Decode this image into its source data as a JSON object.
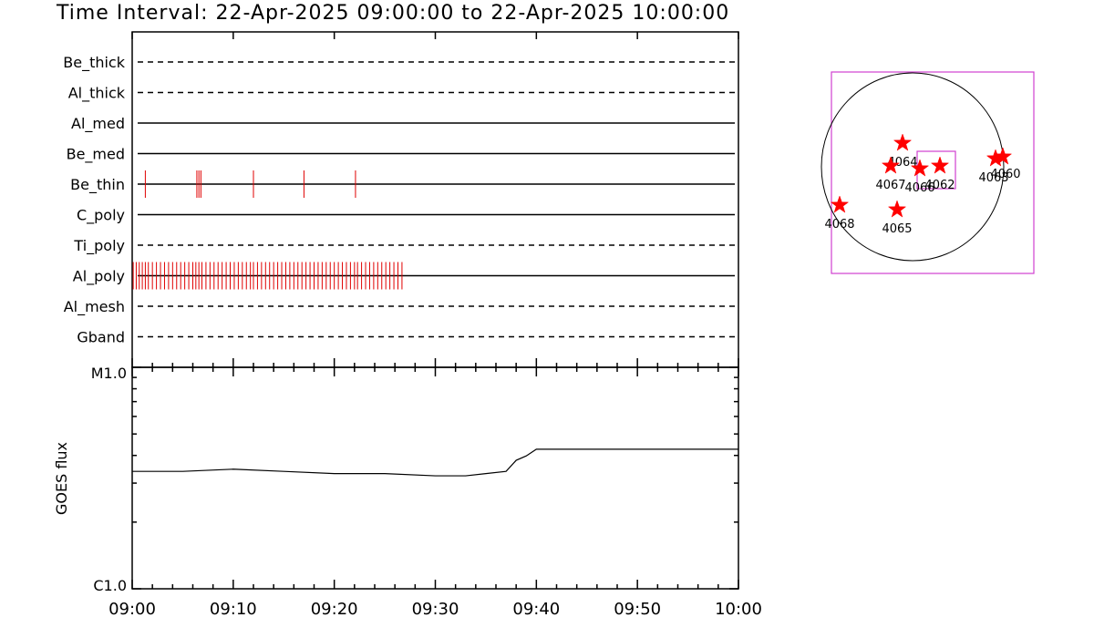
{
  "title": "Time Interval: 22-Apr-2025 09:00:00 to 22-Apr-2025 10:00:00",
  "colors": {
    "event": "#e00000",
    "box": "#d040d0",
    "star": "#ff0000",
    "axis": "#000000"
  },
  "chart_data": [
    {
      "type": "timeline",
      "name": "filter-events",
      "xrange_minutes": [
        0,
        60
      ],
      "channels": [
        {
          "label": "Be_thick",
          "line": "dashed",
          "events": []
        },
        {
          "label": "Al_thick",
          "line": "dashed",
          "events": []
        },
        {
          "label": "Al_med",
          "line": "solid",
          "events": []
        },
        {
          "label": "Be_med",
          "line": "solid",
          "events": []
        },
        {
          "label": "Be_thin",
          "line": "solid",
          "events": [
            1.3,
            6.4,
            6.6,
            6.8,
            12.0,
            17.0,
            22.1
          ]
        },
        {
          "label": "C_poly",
          "line": "solid",
          "events": []
        },
        {
          "label": "Ti_poly",
          "line": "dashed",
          "events": []
        },
        {
          "label": "Al_poly",
          "line": "solid",
          "events": [
            0.1,
            0.4,
            0.7,
            1.0,
            1.3,
            1.6,
            2.0,
            2.4,
            2.8,
            3.2,
            3.6,
            4.0,
            4.4,
            4.8,
            5.2,
            5.6,
            6.0,
            6.3,
            6.6,
            6.9,
            7.3,
            7.7,
            8.1,
            8.5,
            8.9,
            9.3,
            9.7,
            10.1,
            10.5,
            10.9,
            11.3,
            11.7,
            12.0,
            12.4,
            12.8,
            13.2,
            13.6,
            14.0,
            14.4,
            14.8,
            15.2,
            15.6,
            16.0,
            16.4,
            16.8,
            17.2,
            17.6,
            18.0,
            18.4,
            18.8,
            19.2,
            19.6,
            20.0,
            20.4,
            20.8,
            21.2,
            21.6,
            22.0,
            22.3,
            22.7,
            23.1,
            23.5,
            23.9,
            24.3,
            24.7,
            25.1,
            25.5,
            25.9,
            26.3,
            26.7
          ]
        },
        {
          "label": "Al_mesh",
          "line": "dashed",
          "events": []
        },
        {
          "label": "Gband",
          "line": "dashed",
          "events": []
        }
      ]
    },
    {
      "type": "line",
      "name": "goes-flux",
      "ylabel": "GOES flux",
      "ytick_labels": [
        "M1.0",
        "C1.0"
      ],
      "ylim_log": [
        -6,
        -5
      ],
      "xtick_labels": [
        "09:00",
        "09:10",
        "09:20",
        "09:30",
        "09:40",
        "09:50",
        "10:00"
      ],
      "x_minutes": [
        0,
        5,
        10,
        15,
        20,
        25,
        30,
        33,
        35,
        37,
        38,
        39,
        40,
        45,
        50,
        55,
        60
      ],
      "y_log_flux": [
        -5.47,
        -5.47,
        -5.46,
        -5.47,
        -5.48,
        -5.48,
        -5.49,
        -5.49,
        -5.48,
        -5.47,
        -5.42,
        -5.4,
        -5.37,
        -5.37,
        -5.37,
        -5.37,
        -5.37
      ]
    },
    {
      "type": "scatter",
      "name": "solar-disk-map",
      "regions": [
        {
          "label": "4064"
        },
        {
          "label": "4067"
        },
        {
          "label": "4066"
        },
        {
          "label": "4062"
        },
        {
          "label": "4063"
        },
        {
          "label": "4060"
        },
        {
          "label": "4068"
        },
        {
          "label": "4065"
        }
      ]
    }
  ]
}
